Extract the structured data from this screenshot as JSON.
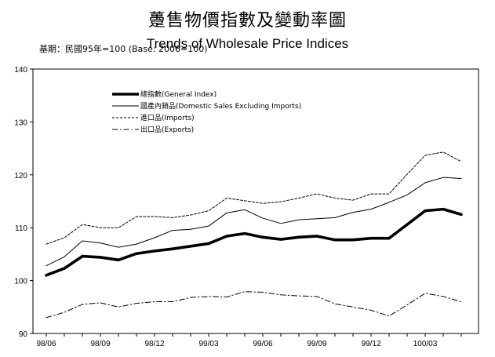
{
  "header": {
    "title_cn": "躉售物價指數及變動率圖",
    "title_en": "Trends of Wholesale Price Indices",
    "base_label": "基期：民國95年=100 (Base: 2006=100)"
  },
  "chart_data": {
    "type": "line",
    "title": "躉售物價指數及變動率圖",
    "subtitle": "Trends of Wholesale Price Indices",
    "xlabel": "",
    "ylabel": "",
    "ylim": [
      90,
      140
    ],
    "yticks": [
      90,
      100,
      110,
      120,
      130,
      140
    ],
    "x": [
      "98/06",
      "98/07",
      "98/08",
      "98/09",
      "98/10",
      "98/11",
      "98/12",
      "99/01",
      "99/02",
      "99/03",
      "99/04",
      "99/05",
      "99/06",
      "99/07",
      "99/08",
      "99/09",
      "99/10",
      "99/11",
      "99/12",
      "100/01",
      "100/02",
      "100/03",
      "100/04",
      "100/05"
    ],
    "xtick_labels": [
      "98/06",
      "98/09",
      "98/12",
      "99/03",
      "99/06",
      "99/09",
      "99/12",
      "100/03"
    ],
    "grid": false,
    "legend_position": "top-left",
    "series": [
      {
        "name": "總指數(General Index)",
        "style": "thick-solid",
        "values": [
          101.0,
          102.3,
          104.6,
          104.4,
          103.9,
          105.1,
          105.6,
          106.0,
          106.5,
          107.0,
          108.4,
          108.9,
          108.2,
          107.8,
          108.2,
          108.4,
          107.7,
          107.7,
          108.0,
          108.0,
          110.6,
          113.2,
          113.5,
          112.5
        ]
      },
      {
        "name": "國產內銷品(Domestic Sales Excluding Imports)",
        "style": "thin-solid",
        "values": [
          102.8,
          104.5,
          107.5,
          107.1,
          106.3,
          106.9,
          108.1,
          109.5,
          109.7,
          110.3,
          112.8,
          113.4,
          111.8,
          110.8,
          111.5,
          111.7,
          111.9,
          112.9,
          113.5,
          114.8,
          116.2,
          118.5,
          119.5,
          119.3
        ]
      },
      {
        "name": "進口品(Imports)",
        "style": "dashed",
        "values": [
          106.9,
          108.1,
          110.6,
          110.0,
          110.0,
          112.1,
          112.1,
          111.9,
          112.4,
          113.2,
          115.6,
          115.1,
          114.6,
          114.9,
          115.6,
          116.4,
          115.6,
          115.2,
          116.4,
          116.4,
          120.1,
          123.7,
          124.3,
          122.5
        ]
      },
      {
        "name": "出口品(Exports)",
        "style": "dash-dot",
        "values": [
          93.0,
          94.0,
          95.5,
          95.8,
          95.0,
          95.7,
          96.0,
          96.0,
          96.8,
          97.0,
          96.9,
          97.9,
          97.8,
          97.3,
          97.1,
          97.0,
          95.6,
          95.0,
          94.4,
          93.3,
          95.4,
          97.6,
          97.0,
          96.0
        ]
      }
    ]
  }
}
